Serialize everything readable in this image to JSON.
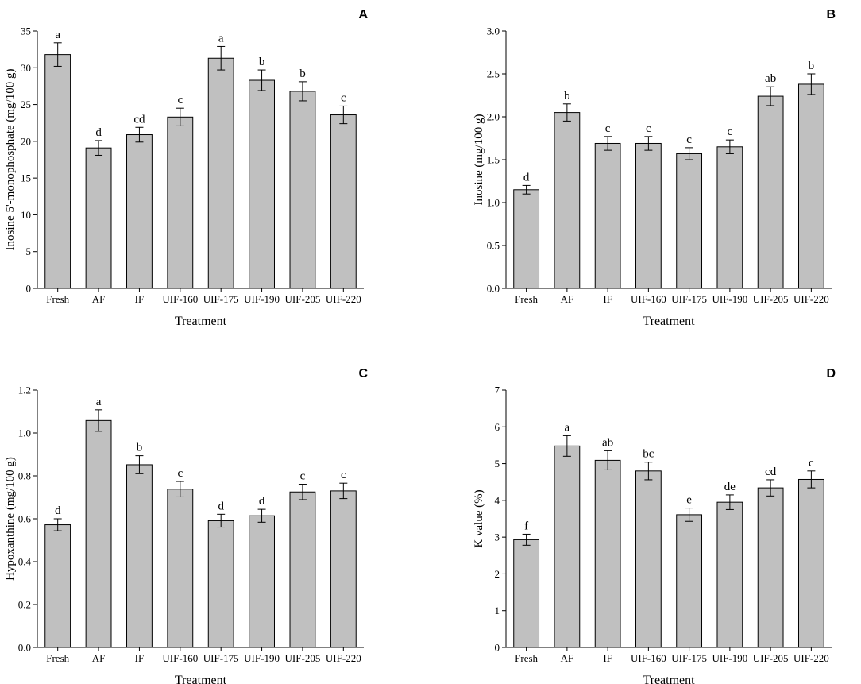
{
  "chart_data": [
    {
      "panel": "A",
      "type": "bar",
      "ylabel": "Inosine 5'-monophosphate (mg/100 g)",
      "xlabel": "Treatment",
      "categories": [
        "Fresh",
        "AF",
        "IF",
        "UIF-160",
        "UIF-175",
        "UIF-190",
        "UIF-205",
        "UIF-220"
      ],
      "values": [
        31.8,
        19.1,
        20.9,
        23.3,
        31.3,
        28.3,
        26.8,
        23.6
      ],
      "errors": [
        1.6,
        1.0,
        1.0,
        1.2,
        1.6,
        1.4,
        1.3,
        1.2
      ],
      "letters": [
        "a",
        "d",
        "cd",
        "c",
        "a",
        "b",
        "b",
        "c"
      ],
      "ylim": [
        0,
        35
      ],
      "yticks": [
        "0",
        "5",
        "10",
        "15",
        "20",
        "25",
        "30",
        "35"
      ]
    },
    {
      "panel": "B",
      "type": "bar",
      "ylabel": "Inosine (mg/100 g)",
      "xlabel": "Treatment",
      "categories": [
        "Fresh",
        "AF",
        "IF",
        "UIF-160",
        "UIF-175",
        "UIF-190",
        "UIF-205",
        "UIF-220"
      ],
      "values": [
        1.15,
        2.05,
        1.69,
        1.69,
        1.57,
        1.65,
        2.24,
        2.38
      ],
      "errors": [
        0.05,
        0.1,
        0.08,
        0.08,
        0.07,
        0.08,
        0.11,
        0.12
      ],
      "letters": [
        "d",
        "b",
        "c",
        "c",
        "c",
        "c",
        "ab",
        "b"
      ],
      "ylim": [
        0,
        3
      ],
      "yticks": [
        "0.0",
        "0.5",
        "1.0",
        "1.5",
        "2.0",
        "2.5",
        "3.0"
      ]
    },
    {
      "panel": "C",
      "type": "bar",
      "ylabel": "Hypoxanthine (mg/100 g)",
      "xlabel": "Treatment",
      "categories": [
        "Fresh",
        "AF",
        "IF",
        "UIF-160",
        "UIF-175",
        "UIF-190",
        "UIF-205",
        "UIF-220"
      ],
      "values": [
        0.572,
        1.058,
        0.852,
        0.738,
        0.591,
        0.614,
        0.725,
        0.73
      ],
      "errors": [
        0.028,
        0.05,
        0.042,
        0.036,
        0.03,
        0.03,
        0.036,
        0.036
      ],
      "letters": [
        "d",
        "a",
        "b",
        "c",
        "d",
        "d",
        "c",
        "c"
      ],
      "ylim": [
        0,
        1.2
      ],
      "yticks": [
        "0.0",
        "0.2",
        "0.4",
        "0.6",
        "0.8",
        "1.0",
        "1.2"
      ]
    },
    {
      "panel": "D",
      "type": "bar",
      "ylabel": "K value (%)",
      "xlabel": "Treatment",
      "categories": [
        "Fresh",
        "AF",
        "IF",
        "UIF-160",
        "UIF-175",
        "UIF-190",
        "UIF-205",
        "UIF-220"
      ],
      "values": [
        2.93,
        5.48,
        5.09,
        4.8,
        3.61,
        3.95,
        4.34,
        4.57
      ],
      "errors": [
        0.15,
        0.28,
        0.26,
        0.24,
        0.18,
        0.2,
        0.22,
        0.23
      ],
      "letters": [
        "f",
        "a",
        "ab",
        "bc",
        "e",
        "de",
        "cd",
        "c"
      ],
      "ylim": [
        0,
        7
      ],
      "yticks": [
        "0",
        "1",
        "2",
        "3",
        "4",
        "5",
        "6",
        "7"
      ]
    }
  ]
}
